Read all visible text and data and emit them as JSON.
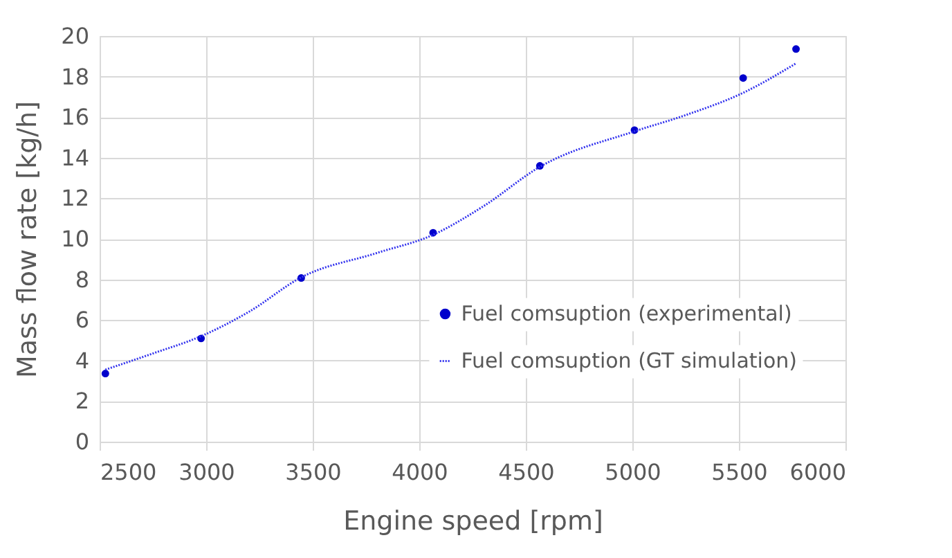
{
  "chart_data": {
    "type": "scatter",
    "xlabel": "Engine speed [rpm]",
    "ylabel": "Mass flow rate [kg/h]",
    "xlim": [
      2500,
      6000
    ],
    "xticks": [
      2500,
      3000,
      3500,
      4000,
      4500,
      5000,
      5500,
      6000
    ],
    "ylim": [
      0,
      20
    ],
    "yticks": [
      0,
      2,
      4,
      6,
      8,
      10,
      12,
      14,
      16,
      18,
      20
    ],
    "grid": true,
    "legend": "bottom right",
    "series": [
      {
        "name": "Fuel comsuption (experimental)",
        "type": "scatter",
        "marker": "circle",
        "color": "#0000cc",
        "x": [
          2527,
          2976,
          3446,
          4065,
          4566,
          5010,
          5520,
          5768
        ],
        "values": [
          3.36,
          5.09,
          8.07,
          10.3,
          13.6,
          15.36,
          17.93,
          19.36
        ]
      },
      {
        "name": "Fuel comsuption (GT simulation)",
        "type": "line",
        "line_style": "dotted",
        "color": "#3333ee",
        "x": [
          2527,
          2750,
          2976,
          3200,
          3446,
          3800,
          4065,
          4300,
          4566,
          5010,
          5250,
          5520,
          5768
        ],
        "values": [
          3.55,
          4.35,
          5.2,
          6.4,
          8.1,
          9.3,
          10.2,
          11.6,
          13.55,
          15.3,
          16.1,
          17.2,
          18.65
        ]
      }
    ]
  }
}
